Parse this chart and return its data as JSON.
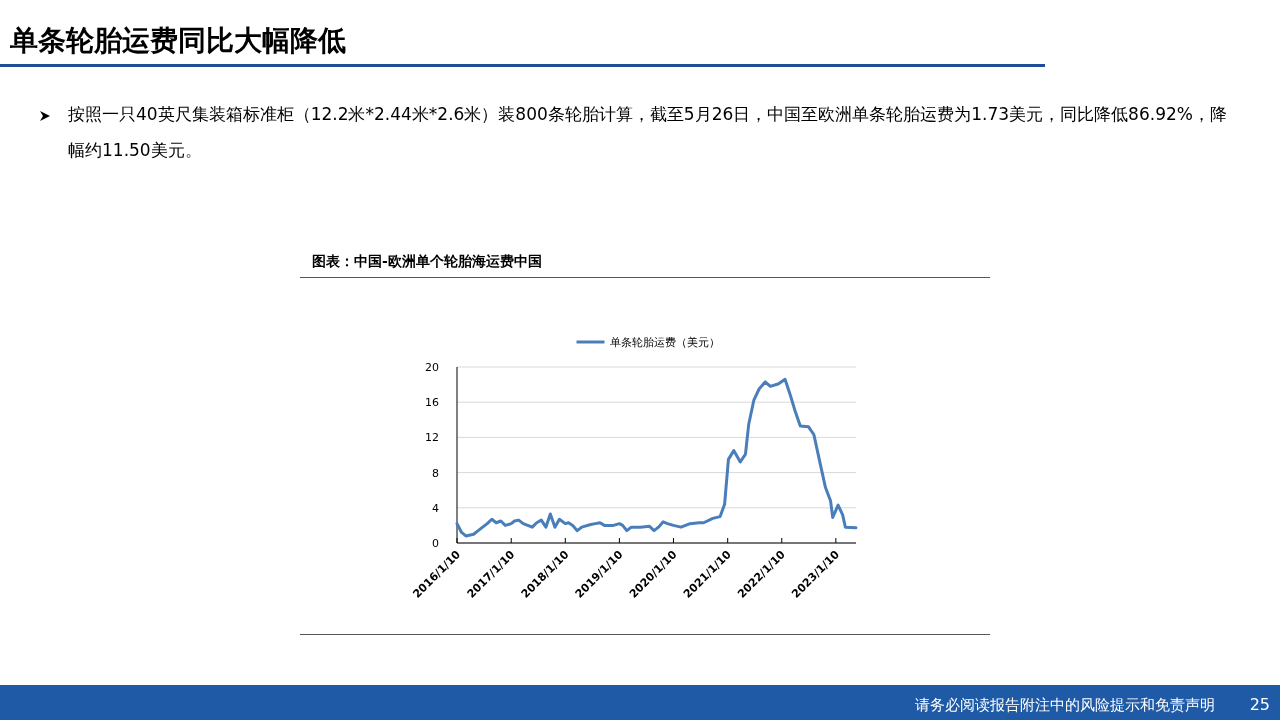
{
  "chart_data": {
    "type": "line",
    "title": "单条轮胎运费同比大幅降低",
    "subtitle": "按照一只40英尺集装箱标准柜（12.2米*2.44米*2.6米）装800条轮胎计算，截至5月26日，中国至欧洲单条轮胎运费为1.73美元，同比降低86.92%，降幅约11.50美元。",
    "annotations": [
      "图表：中国-欧洲单个轮胎海运费中国",
      "请务必阅读报告附注中的风险提示和免责声明",
      "25"
    ],
    "legend": "top",
    "grid": "y",
    "marker": "none",
    "line_style": "solid",
    "xlim": [
      "2016-01-10",
      "2023-05-26"
    ],
    "xticks": [
      {
        "value": "2016-01-10",
        "label": "2016/1/10"
      },
      {
        "value": "2017-01-10",
        "label": "2017/1/10"
      },
      {
        "value": "2018-01-10",
        "label": "2018/1/10"
      },
      {
        "value": "2019-01-10",
        "label": "2019/1/10"
      },
      {
        "value": "2020-01-10",
        "label": "2020/1/10"
      },
      {
        "value": "2021-01-10",
        "label": "2021/1/10"
      },
      {
        "value": "2022-01-10",
        "label": "2022/1/10"
      },
      {
        "value": "2023-01-10",
        "label": "2023/1/10"
      }
    ],
    "ylim": [
      0,
      20
    ],
    "yticks": [
      0,
      4,
      8,
      12,
      16,
      20
    ],
    "series": [
      {
        "name": "单条轮胎运费（美元）",
        "color": "#4a7ebb",
        "x": [
          "2016-01-10",
          "2016-02-10",
          "2016-03-10",
          "2016-05-01",
          "2016-06-01",
          "2016-07-01",
          "2016-08-01",
          "2016-09-01",
          "2016-10-01",
          "2016-11-01",
          "2016-12-01",
          "2017-01-10",
          "2017-02-01",
          "2017-03-01",
          "2017-04-01",
          "2017-06-01",
          "2017-07-01",
          "2017-08-01",
          "2017-09-01",
          "2017-10-01",
          "2017-11-01",
          "2017-12-01",
          "2018-01-10",
          "2018-02-01",
          "2018-03-01",
          "2018-04-01",
          "2018-05-01",
          "2018-07-01",
          "2018-08-01",
          "2018-09-01",
          "2018-10-01",
          "2018-12-01",
          "2019-01-10",
          "2019-02-01",
          "2019-03-01",
          "2019-04-01",
          "2019-06-01",
          "2019-08-01",
          "2019-09-01",
          "2019-10-01",
          "2019-11-01",
          "2019-12-01",
          "2020-01-10",
          "2020-03-01",
          "2020-05-01",
          "2020-07-01",
          "2020-08-01",
          "2020-10-01",
          "2020-11-20",
          "2020-12-20",
          "2021-01-15",
          "2021-02-20",
          "2021-04-05",
          "2021-05-10",
          "2021-06-01",
          "2021-07-05",
          "2021-08-10",
          "2021-09-20",
          "2021-10-25",
          "2021-12-20",
          "2022-02-01",
          "2022-03-05",
          "2022-04-10",
          "2022-05-15",
          "2022-07-10",
          "2022-08-15",
          "2022-09-20",
          "2022-11-01",
          "2022-12-05",
          "2022-12-20",
          "2023-01-25",
          "2023-02-25",
          "2023-03-15",
          "2023-05-26"
        ],
        "values": [
          2.2,
          1.2,
          0.8,
          1.0,
          1.4,
          1.8,
          2.2,
          2.7,
          2.3,
          2.5,
          2.0,
          2.2,
          2.5,
          2.6,
          2.2,
          1.8,
          2.3,
          2.6,
          1.8,
          3.3,
          1.8,
          2.7,
          2.2,
          2.3,
          2.0,
          1.4,
          1.8,
          2.1,
          2.2,
          2.3,
          2.0,
          2.0,
          2.2,
          2.0,
          1.4,
          1.8,
          1.8,
          1.9,
          1.4,
          1.8,
          2.4,
          2.2,
          2.0,
          1.8,
          2.2,
          2.3,
          2.3,
          2.8,
          3.0,
          4.4,
          9.5,
          10.5,
          9.2,
          10.1,
          13.5,
          16.2,
          17.5,
          18.3,
          17.8,
          18.1,
          18.6,
          17.0,
          15.0,
          13.3,
          13.2,
          12.3,
          9.5,
          6.3,
          4.8,
          2.9,
          4.3,
          3.2,
          1.8,
          1.73
        ]
      }
    ]
  }
}
